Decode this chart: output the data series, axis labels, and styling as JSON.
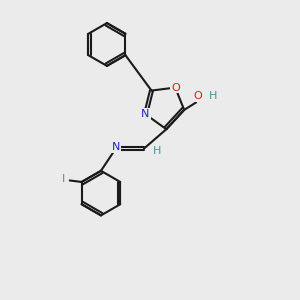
{
  "background_color": "#ebebeb",
  "bond_color": "#1a1a1a",
  "atom_colors": {
    "N": "#2222cc",
    "O": "#cc2222",
    "H_teal": "#3d9999",
    "I": "#cc44cc",
    "C": "#1a1a1a"
  },
  "figsize": [
    3.0,
    3.0
  ],
  "dpi": 100
}
